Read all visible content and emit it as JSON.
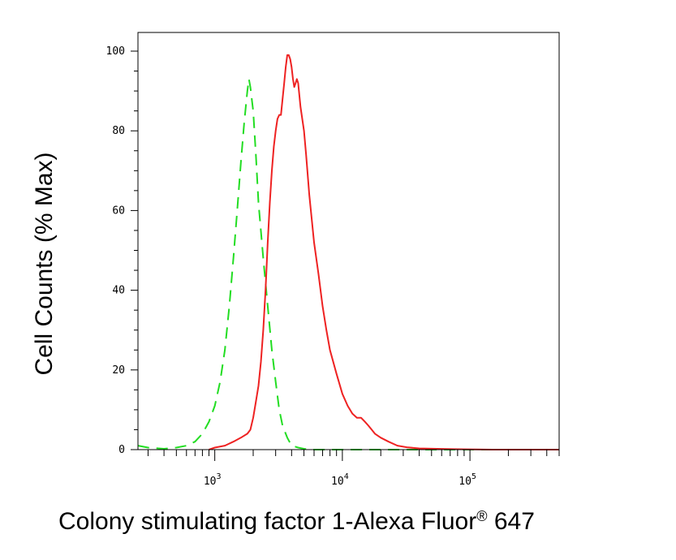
{
  "chart_data": {
    "type": "line",
    "title": "",
    "xlabel": "Colony stimulating factor 1-Alexa Fluor",
    "xlabel_sup": "®",
    "xlabel_suffix": " 647",
    "ylabel": "Cell Counts (% Max)",
    "x_scale": "log",
    "xlim": [
      250,
      500000
    ],
    "ylim": [
      0,
      100
    ],
    "y_ticks": [
      0,
      20,
      40,
      60,
      80,
      100
    ],
    "y_tick_labels": [
      "0",
      "20",
      "40",
      "60",
      "80",
      "100"
    ],
    "x_major_ticks": [
      1000,
      10000,
      100000
    ],
    "x_tick_labels": [
      {
        "base": "10",
        "exp": "3"
      },
      {
        "base": "10",
        "exp": "4"
      },
      {
        "base": "10",
        "exp": "5"
      }
    ],
    "grid": false,
    "series": [
      {
        "style": "dashed",
        "color": "#22dd22",
        "x": [
          250,
          300,
          400,
          500,
          600,
          700,
          800,
          900,
          1000,
          1100,
          1200,
          1300,
          1400,
          1500,
          1600,
          1700,
          1800,
          1850,
          1900,
          2000,
          2100,
          2200,
          2400,
          2600,
          2800,
          3000,
          3200,
          3400,
          3700,
          4000,
          4500,
          5000,
          5500,
          6000,
          8000,
          20000,
          500000
        ],
        "y": [
          1,
          0.5,
          0.2,
          0.5,
          1,
          2,
          4,
          7,
          11,
          17,
          25,
          36,
          48,
          60,
          72,
          82,
          90,
          93,
          91,
          85,
          74,
          62,
          48,
          36,
          25,
          17,
          10,
          6,
          3,
          1,
          0.5,
          0.2,
          0,
          0,
          0,
          0,
          0
        ]
      },
      {
        "style": "solid",
        "color": "#ee2222",
        "x": [
          900,
          1000,
          1200,
          1400,
          1600,
          1800,
          1900,
          2000,
          2100,
          2200,
          2300,
          2400,
          2500,
          2600,
          2700,
          2800,
          2900,
          3000,
          3100,
          3200,
          3300,
          3400,
          3500,
          3600,
          3700,
          3800,
          3900,
          4000,
          4100,
          4200,
          4300,
          4400,
          4500,
          4700,
          5000,
          5200,
          5500,
          6000,
          6500,
          7000,
          7500,
          8000,
          9000,
          10000,
          11000,
          12000,
          13000,
          14000,
          15000,
          16000,
          17000,
          18000,
          20000,
          23000,
          27000,
          32000,
          40000,
          55000,
          80000,
          150000,
          500000
        ],
        "y": [
          0,
          0.5,
          1,
          2,
          3,
          4,
          5,
          8,
          12,
          16,
          22,
          30,
          40,
          52,
          62,
          70,
          76,
          80,
          83,
          84,
          84,
          88,
          92,
          96,
          99,
          99,
          98,
          96,
          93,
          91,
          92,
          93,
          92,
          86,
          80,
          74,
          64,
          52,
          44,
          36,
          30,
          25,
          19,
          14,
          11,
          9,
          8,
          8,
          7,
          6,
          5,
          4,
          3,
          2,
          1,
          0.6,
          0.3,
          0.2,
          0.1,
          0,
          0
        ]
      }
    ]
  }
}
